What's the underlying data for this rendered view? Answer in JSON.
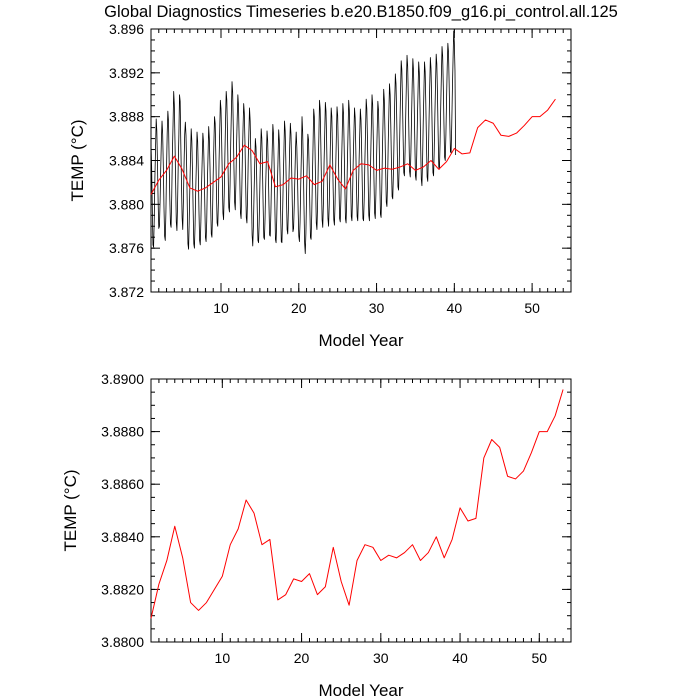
{
  "title": "Global Diagnostics Timeseries b.e20.B1850.f09_g16.pi_control.all.125",
  "chart_data": [
    {
      "type": "line",
      "xlabel": "Model Year",
      "ylabel": "TEMP (°C)",
      "xlim": [
        1,
        55
      ],
      "ylim": [
        3.872,
        3.896
      ],
      "x_ticks": [
        10,
        20,
        30,
        40,
        50
      ],
      "y_ticks": [
        "3.872",
        "3.876",
        "3.880",
        "3.884",
        "3.888",
        "3.892",
        "3.896"
      ],
      "grid": false,
      "series": [
        {
          "resolution": "monthly",
          "color": "#000000",
          "x_start": 1,
          "x_step": 0.0833333,
          "values": [
            3.8856,
            3.8834,
            3.8797,
            3.8763,
            3.8761,
            3.8786,
            3.8824,
            3.8851,
            3.8878,
            3.8867,
            3.8837,
            3.8802,
            3.8778,
            3.878,
            3.8802,
            3.8832,
            3.8858,
            3.8876,
            3.8864,
            3.8835,
            3.8798,
            3.8771,
            3.8767,
            3.8793,
            3.8834,
            3.8865,
            3.8885,
            3.8876,
            3.8839,
            3.8805,
            3.8782,
            3.8779,
            3.8808,
            3.8847,
            3.8873,
            3.8903,
            3.8891,
            3.8858,
            3.882,
            3.8784,
            3.8776,
            3.88,
            3.8836,
            3.8863,
            3.89,
            3.8894,
            3.8855,
            3.882,
            3.8788,
            3.8777,
            3.8803,
            3.8837,
            3.8864,
            3.8875,
            3.8863,
            3.8834,
            3.8797,
            3.8764,
            3.8759,
            3.8786,
            3.8818,
            3.8844,
            3.8869,
            3.8858,
            3.883,
            3.8795,
            3.8764,
            3.876,
            3.8781,
            3.8813,
            3.8837,
            3.8866,
            3.8857,
            3.883,
            3.8794,
            3.8767,
            3.8763,
            3.8785,
            3.8818,
            3.8841,
            3.8865,
            3.8857,
            3.8833,
            3.88,
            3.877,
            3.8766,
            3.8785,
            3.882,
            3.8845,
            3.8871,
            3.886,
            3.8835,
            3.8802,
            3.8773,
            3.877,
            3.8793,
            3.8828,
            3.8855,
            3.888,
            3.8874,
            3.8846,
            3.8811,
            3.8783,
            3.878,
            3.8802,
            3.884,
            3.8866,
            3.8895,
            3.8887,
            3.8858,
            3.8824,
            3.8792,
            3.8786,
            3.881,
            3.8845,
            3.8876,
            3.8903,
            3.8895,
            3.8865,
            3.8829,
            3.8797,
            3.8793,
            3.8818,
            3.8856,
            3.8884,
            3.8912,
            3.8902,
            3.8869,
            3.8833,
            3.8802,
            3.8795,
            3.882,
            3.8854,
            3.8878,
            3.89,
            3.889,
            3.886,
            3.8823,
            3.8792,
            3.8787,
            3.881,
            3.8844,
            3.887,
            3.8892,
            3.8883,
            3.8856,
            3.882,
            3.8788,
            3.8783,
            3.8806,
            3.884,
            3.8865,
            3.8888,
            3.8876,
            3.8847,
            3.8809,
            3.8772,
            3.8762,
            3.878,
            3.881,
            3.8836,
            3.886,
            3.8852,
            3.8826,
            3.8793,
            3.8767,
            3.8765,
            3.8786,
            3.8818,
            3.8844,
            3.8869,
            3.886,
            3.8833,
            3.8799,
            3.877,
            3.8768,
            3.8788,
            3.8818,
            3.8842,
            3.8867,
            3.8858,
            3.8832,
            3.88,
            3.8772,
            3.8771,
            3.8793,
            3.8825,
            3.8849,
            3.8873,
            3.8864,
            3.8836,
            3.8801,
            3.8768,
            3.8765,
            3.8786,
            3.8817,
            3.8842,
            3.8868,
            3.8858,
            3.8829,
            3.8794,
            3.8766,
            3.8765,
            3.8789,
            3.8821,
            3.8847,
            3.8876,
            3.8867,
            3.8841,
            3.8807,
            3.8777,
            3.8773,
            3.8796,
            3.8827,
            3.8853,
            3.8874,
            3.8864,
            3.8834,
            3.88,
            3.8775,
            3.8778,
            3.8799,
            3.8826,
            3.8851,
            3.8866,
            3.8852,
            3.8826,
            3.8795,
            3.8771,
            3.8766,
            3.8784,
            3.8817,
            3.8845,
            3.888,
            3.8866,
            3.8837,
            3.8799,
            3.8765,
            3.8755,
            3.8774,
            3.8808,
            3.8839,
            3.8864,
            3.8859,
            3.8834,
            3.8799,
            3.877,
            3.8768,
            3.879,
            3.8824,
            3.8854,
            3.8887,
            3.888,
            3.8852,
            3.8816,
            3.8783,
            3.8777,
            3.8799,
            3.8834,
            3.8862,
            3.8895,
            3.8887,
            3.8856,
            3.8819,
            3.8786,
            3.8779,
            3.8801,
            3.8838,
            3.8864,
            3.8893,
            3.8885,
            3.8857,
            3.882,
            3.8787,
            3.878,
            3.88,
            3.8832,
            3.8862,
            3.8888,
            3.888,
            3.8849,
            3.8815,
            3.8786,
            3.8781,
            3.8801,
            3.8834,
            3.8862,
            3.8889,
            3.8881,
            3.8851,
            3.8817,
            3.8787,
            3.8784,
            3.8805,
            3.8837,
            3.8863,
            3.8892,
            3.8883,
            3.8853,
            3.8818,
            3.8787,
            3.8783,
            3.8805,
            3.8838,
            3.8866,
            3.8895,
            3.8886,
            3.8858,
            3.8821,
            3.8789,
            3.8785,
            3.8808,
            3.884,
            3.8864,
            3.8888,
            3.8879,
            3.885,
            3.8817,
            3.8789,
            3.8785,
            3.8808,
            3.8839,
            3.8863,
            3.8887,
            3.8877,
            3.8849,
            3.8816,
            3.8787,
            3.8785,
            3.8806,
            3.884,
            3.8867,
            3.8896,
            3.8887,
            3.8858,
            3.8822,
            3.879,
            3.8785,
            3.8809,
            3.8844,
            3.8872,
            3.89,
            3.8891,
            3.886,
            3.8823,
            3.8792,
            3.8787,
            3.881,
            3.8842,
            3.8868,
            3.8894,
            3.8886,
            3.8858,
            3.8822,
            3.8791,
            3.8788,
            3.8812,
            3.8848,
            3.8876,
            3.8905,
            3.8895,
            3.8866,
            3.8832,
            3.8802,
            3.8798,
            3.8821,
            3.8855,
            3.8884,
            3.891,
            3.89,
            3.8871,
            3.8837,
            3.8807,
            3.8805,
            3.8828,
            3.8861,
            3.8893,
            3.8919,
            3.891,
            3.8882,
            3.8847,
            3.8816,
            3.8813,
            3.8837,
            3.8871,
            3.8902,
            3.8931,
            3.8923,
            3.8895,
            3.886,
            3.8829,
            3.8826,
            3.8848,
            3.8881,
            3.891,
            3.8936,
            3.8926,
            3.8898,
            3.8862,
            3.883,
            3.8825,
            3.8848,
            3.888,
            3.8909,
            3.8933,
            3.8922,
            3.8894,
            3.8858,
            3.8826,
            3.8822,
            3.8845,
            3.8877,
            3.8904,
            3.893,
            3.892,
            3.8891,
            3.8855,
            3.8823,
            3.8817,
            3.884,
            3.8874,
            3.8902,
            3.893,
            3.8921,
            3.8892,
            3.8857,
            3.8825,
            3.8821,
            3.8845,
            3.8878,
            3.8907,
            3.8934,
            3.8924,
            3.8896,
            3.886,
            3.8829,
            3.8826,
            3.885,
            3.8882,
            3.891,
            3.8937,
            3.8928,
            3.89,
            3.8865,
            3.8834,
            3.8832,
            3.8856,
            3.8889,
            3.8917,
            3.8944,
            3.8935,
            3.8907,
            3.8873,
            3.8843,
            3.884,
            3.8864,
            3.8896,
            3.8925,
            3.8947,
            3.8939,
            3.891,
            3.8875,
            3.8848,
            3.8847,
            3.8872,
            3.8905,
            3.8932,
            3.8958,
            3.8948,
            3.8922,
            3.8845
          ]
        },
        {
          "resolution": "annual",
          "color": "#ff0000",
          "x_start": 1,
          "x_step": 1,
          "values": [
            3.8809,
            3.8822,
            3.8831,
            3.8844,
            3.8832,
            3.8815,
            3.8812,
            3.8815,
            3.882,
            3.8825,
            3.8837,
            3.8843,
            3.8854,
            3.8849,
            3.8837,
            3.8839,
            3.8816,
            3.8818,
            3.8824,
            3.8823,
            3.8826,
            3.8818,
            3.8821,
            3.8836,
            3.8823,
            3.8814,
            3.8831,
            3.8837,
            3.8836,
            3.8831,
            3.8833,
            3.8832,
            3.8834,
            3.8837,
            3.8831,
            3.8834,
            3.884,
            3.8832,
            3.8839,
            3.8851,
            3.8846,
            3.8847,
            3.887,
            3.8877,
            3.8874,
            3.8863,
            3.8862,
            3.8865,
            3.8872,
            3.888,
            3.888,
            3.8886,
            3.8896
          ]
        }
      ]
    },
    {
      "type": "line",
      "xlabel": "Model Year",
      "ylabel": "TEMP (°C)",
      "xlim": [
        1,
        54
      ],
      "ylim": [
        3.88,
        3.89
      ],
      "x_ticks": [
        10,
        20,
        30,
        40,
        50
      ],
      "y_ticks": [
        "3.8800",
        "3.8820",
        "3.8840",
        "3.8860",
        "3.8880",
        "3.8900"
      ],
      "grid": false,
      "series": [
        {
          "resolution": "annual",
          "color": "#ff0000",
          "x_start": 1,
          "x_step": 1,
          "values": [
            3.8809,
            3.8822,
            3.8831,
            3.8844,
            3.8832,
            3.8815,
            3.8812,
            3.8815,
            3.882,
            3.8825,
            3.8837,
            3.8843,
            3.8854,
            3.8849,
            3.8837,
            3.8839,
            3.8816,
            3.8818,
            3.8824,
            3.8823,
            3.8826,
            3.8818,
            3.8821,
            3.8836,
            3.8823,
            3.8814,
            3.8831,
            3.8837,
            3.8836,
            3.8831,
            3.8833,
            3.8832,
            3.8834,
            3.8837,
            3.8831,
            3.8834,
            3.884,
            3.8832,
            3.8839,
            3.8851,
            3.8846,
            3.8847,
            3.887,
            3.8877,
            3.8874,
            3.8863,
            3.8862,
            3.8865,
            3.8872,
            3.888,
            3.888,
            3.8886,
            3.8896
          ]
        }
      ]
    }
  ]
}
